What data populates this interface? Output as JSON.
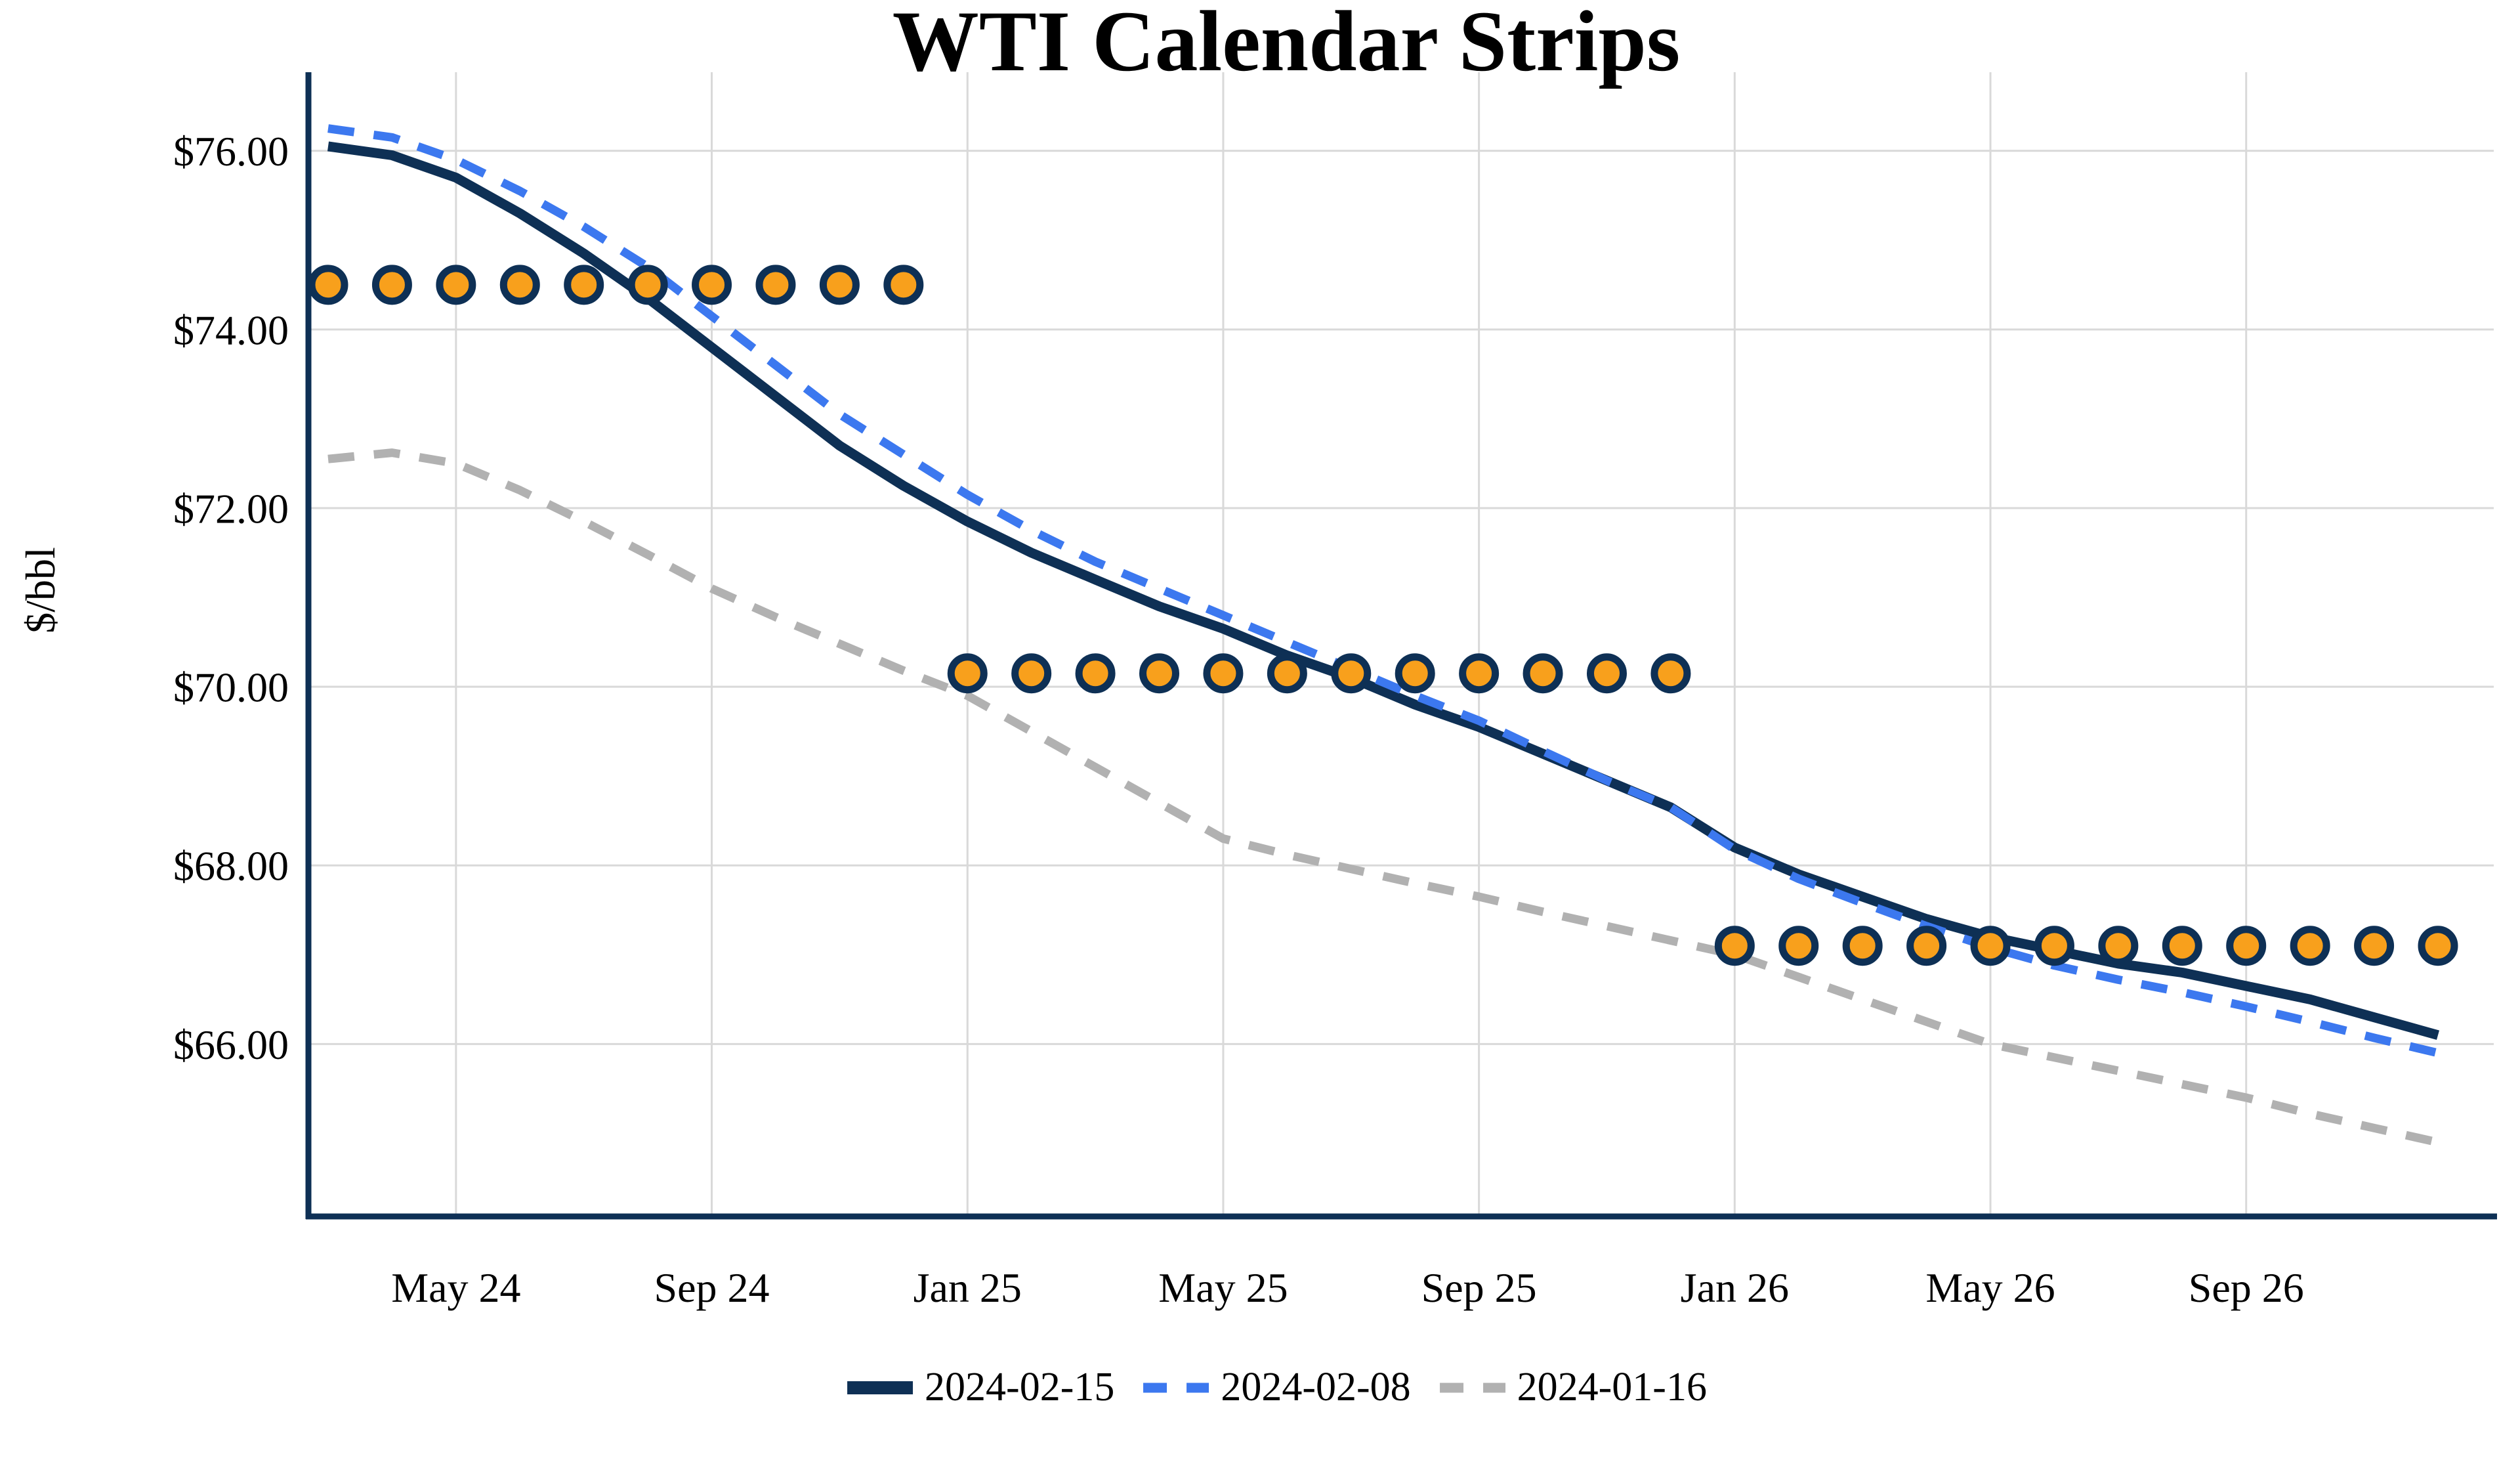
{
  "title": "WTI Calendar Strips",
  "y_axis_label": "$/bbl",
  "chart_data": {
    "type": "line",
    "x": [
      "Mar 24",
      "Apr 24",
      "May 24",
      "Jun 24",
      "Jul 24",
      "Aug 24",
      "Sep 24",
      "Oct 24",
      "Nov 24",
      "Dec 24",
      "Jan 25",
      "Feb 25",
      "Mar 25",
      "Apr 25",
      "May 25",
      "Jun 25",
      "Jul 25",
      "Aug 25",
      "Sep 25",
      "Oct 25",
      "Nov 25",
      "Dec 25",
      "Jan 26",
      "Feb 26",
      "Mar 26",
      "Apr 26",
      "May 26",
      "Jun 26",
      "Jul 26",
      "Aug 26",
      "Sep 26",
      "Oct 26",
      "Nov 26",
      "Dec 26"
    ],
    "x_tick_labels": [
      "May 24",
      "Sep 24",
      "Jan 25",
      "May 25",
      "Sep 25",
      "Jan 26",
      "May 26",
      "Sep 26"
    ],
    "x_tick_positions": [
      2,
      6,
      10,
      14,
      18,
      22,
      26,
      30
    ],
    "y_ticks": [
      {
        "label": "$76.00",
        "value": 76
      },
      {
        "label": "$74.00",
        "value": 74
      },
      {
        "label": "$72.00",
        "value": 72
      },
      {
        "label": "$70.00",
        "value": 70
      },
      {
        "label": "$68.00",
        "value": 68
      },
      {
        "label": "$66.00",
        "value": 66
      }
    ],
    "ylim": [
      64.07,
      76.88
    ],
    "grid": true,
    "legend_position": "bottom",
    "colors": {
      "grid": "#d9d9d9",
      "axis": "#0e3055",
      "text": "#000000"
    },
    "series": [
      {
        "name": "2024-02-15",
        "style": "solid",
        "color": "#0e3055",
        "values": [
          76.05,
          75.95,
          75.7,
          75.3,
          74.85,
          74.35,
          73.8,
          73.25,
          72.7,
          72.25,
          71.85,
          71.5,
          71.2,
          70.9,
          70.65,
          70.35,
          70.1,
          69.8,
          69.55,
          69.25,
          68.95,
          68.65,
          68.2,
          67.9,
          67.65,
          67.4,
          67.2,
          67.05,
          66.9,
          66.8,
          66.65,
          66.5,
          66.3,
          66.1
        ]
      },
      {
        "name": "2024-02-08",
        "style": "dashed",
        "color": "#3c78ef",
        "values": [
          76.25,
          76.15,
          75.9,
          75.55,
          75.15,
          74.7,
          74.15,
          73.6,
          73.05,
          72.6,
          72.15,
          71.75,
          71.4,
          71.1,
          70.8,
          70.5,
          70.2,
          69.9,
          69.62,
          69.28,
          68.95,
          68.65,
          68.18,
          67.85,
          67.58,
          67.32,
          67.08,
          66.88,
          66.72,
          66.58,
          66.42,
          66.25,
          66.07,
          65.9
        ]
      },
      {
        "name": "2024-01-16",
        "style": "dashed",
        "color": "#b1b1b1",
        "values": [
          72.55,
          72.62,
          72.5,
          72.2,
          71.85,
          71.48,
          71.1,
          70.78,
          70.48,
          70.18,
          69.9,
          69.5,
          69.1,
          68.7,
          68.3,
          68.12,
          67.96,
          67.8,
          67.65,
          67.48,
          67.32,
          67.16,
          67.0,
          66.75,
          66.5,
          66.25,
          66.0,
          65.85,
          65.7,
          65.55,
          65.4,
          65.22,
          65.06,
          64.9
        ]
      }
    ],
    "strip_markers": {
      "color": "#f8a01c",
      "border_color": "#0e3055",
      "groups": [
        {
          "value": 74.5,
          "start_index": 0,
          "end_index": 9
        },
        {
          "value": 70.15,
          "start_index": 10,
          "end_index": 21
        },
        {
          "value": 67.1,
          "start_index": 22,
          "end_index": 33
        }
      ]
    }
  },
  "legend": {
    "items": [
      "2024-02-15",
      "2024-02-08",
      "2024-01-16"
    ]
  }
}
